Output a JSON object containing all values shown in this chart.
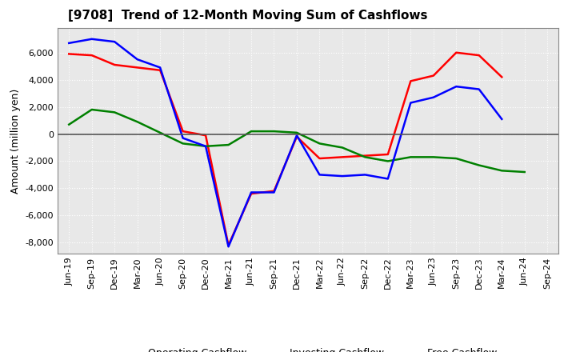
{
  "title": "[9708]  Trend of 12-Month Moving Sum of Cashflows",
  "ylabel": "Amount (million yen)",
  "x_labels": [
    "Jun-19",
    "Sep-19",
    "Dec-19",
    "Mar-20",
    "Jun-20",
    "Sep-20",
    "Dec-20",
    "Mar-21",
    "Jun-21",
    "Sep-21",
    "Dec-21",
    "Mar-22",
    "Jun-22",
    "Sep-22",
    "Dec-22",
    "Mar-23",
    "Jun-23",
    "Sep-23",
    "Dec-23",
    "Mar-24",
    "Jun-24",
    "Sep-24"
  ],
  "operating": [
    5900,
    5800,
    5100,
    4900,
    4700,
    200,
    -100,
    -8200,
    -4400,
    -4200,
    -200,
    -1800,
    -1700,
    -1600,
    -1500,
    3900,
    4300,
    6000,
    5800,
    4200,
    null,
    null
  ],
  "investing": [
    700,
    1800,
    1600,
    900,
    100,
    -700,
    -900,
    -800,
    200,
    200,
    100,
    -700,
    -1000,
    -1700,
    -2000,
    -1700,
    -1700,
    -1800,
    -2300,
    -2700,
    -2800,
    null
  ],
  "free": [
    6700,
    7000,
    6800,
    5500,
    4900,
    -300,
    -900,
    -8300,
    -4300,
    -4300,
    -100,
    -3000,
    -3100,
    -3000,
    -3300,
    2300,
    2700,
    3500,
    3300,
    1100,
    null,
    null
  ],
  "operating_color": "#ff0000",
  "investing_color": "#008000",
  "free_color": "#0000ff",
  "ylim": [
    -8800,
    7800
  ],
  "yticks": [
    -8000,
    -6000,
    -4000,
    -2000,
    0,
    2000,
    4000,
    6000
  ],
  "background_color": "#ffffff",
  "plot_bg_color": "#e8e8e8",
  "grid_color": "#ffffff",
  "title_fontsize": 11,
  "axis_fontsize": 9,
  "tick_fontsize": 8,
  "legend_fontsize": 9
}
